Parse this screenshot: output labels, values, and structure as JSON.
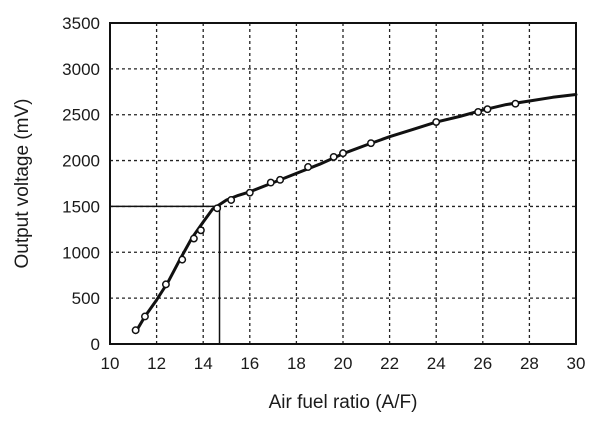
{
  "chart_data": {
    "type": "line",
    "title": "",
    "xlabel": "Air fuel ratio (A/F)",
    "ylabel": "Output voltage (mV)",
    "xlim": [
      10,
      30
    ],
    "ylim": [
      0,
      3500
    ],
    "xticks": [
      10,
      12,
      14,
      16,
      18,
      20,
      22,
      24,
      26,
      28,
      30
    ],
    "yticks": [
      0,
      500,
      1000,
      1500,
      2000,
      2500,
      3000,
      3500
    ],
    "xtick_labels": [
      "10",
      "12",
      "14",
      "16",
      "18",
      "20",
      "22",
      "24",
      "26",
      "28",
      "30"
    ],
    "ytick_labels": [
      "0",
      "500",
      "1000",
      "1500",
      "2000",
      "2500",
      "3000",
      "3500"
    ],
    "grid": true,
    "series": [
      {
        "curve": [
          [
            11.15,
            150
          ],
          [
            11.5,
            300
          ],
          [
            12.0,
            480
          ],
          [
            12.5,
            680
          ],
          [
            13.0,
            920
          ],
          [
            13.5,
            1150
          ],
          [
            14.0,
            1330
          ],
          [
            14.4,
            1470
          ],
          [
            14.7,
            1520
          ],
          [
            15.0,
            1570
          ],
          [
            15.5,
            1620
          ],
          [
            16.0,
            1660
          ],
          [
            17.0,
            1760
          ],
          [
            18.0,
            1860
          ],
          [
            19.0,
            1960
          ],
          [
            20.0,
            2075
          ],
          [
            21.0,
            2170
          ],
          [
            22.0,
            2260
          ],
          [
            23.0,
            2340
          ],
          [
            24.0,
            2420
          ],
          [
            25.0,
            2480
          ],
          [
            26.0,
            2550
          ],
          [
            27.0,
            2610
          ],
          [
            28.0,
            2650
          ],
          [
            29.0,
            2690
          ],
          [
            30.0,
            2720
          ]
        ],
        "points": [
          [
            11.1,
            150
          ],
          [
            11.5,
            300
          ],
          [
            12.4,
            650
          ],
          [
            13.1,
            920
          ],
          [
            13.6,
            1150
          ],
          [
            13.9,
            1240
          ],
          [
            14.6,
            1480
          ],
          [
            15.2,
            1570
          ],
          [
            16.0,
            1650
          ],
          [
            16.9,
            1760
          ],
          [
            17.3,
            1790
          ],
          [
            18.5,
            1930
          ],
          [
            19.6,
            2040
          ],
          [
            20.0,
            2080
          ],
          [
            21.2,
            2190
          ],
          [
            24.0,
            2420
          ],
          [
            25.8,
            2530
          ],
          [
            26.2,
            2560
          ],
          [
            27.4,
            2620
          ]
        ]
      }
    ],
    "annotations": [
      {
        "type": "reference",
        "x": 14.7,
        "y": 1500
      }
    ]
  }
}
